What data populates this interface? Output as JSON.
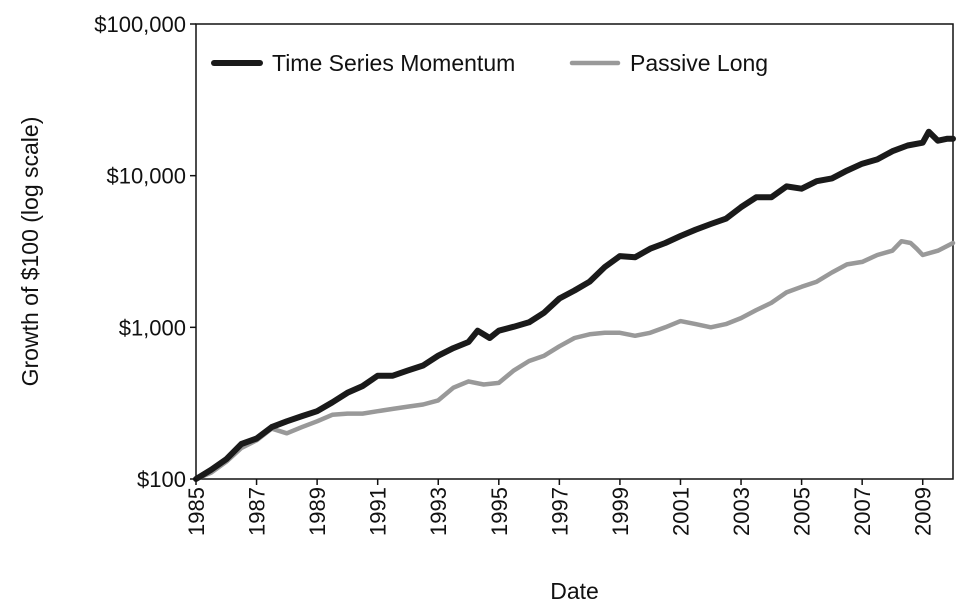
{
  "chart_data": {
    "type": "line",
    "title": "",
    "xlabel": "Date",
    "ylabel": "Growth of $100 (log scale)",
    "y_scale": "log",
    "ylim": [
      100,
      100000
    ],
    "xlim": [
      1985,
      2010
    ],
    "x_ticks": [
      1985,
      1987,
      1989,
      1991,
      1993,
      1995,
      1997,
      1999,
      2001,
      2003,
      2005,
      2007,
      2009
    ],
    "x_tick_labels": [
      "1985",
      "1987",
      "1989",
      "1991",
      "1993",
      "1995",
      "1997",
      "1999",
      "2001",
      "2003",
      "2005",
      "2007",
      "2009"
    ],
    "y_ticks": [
      100,
      1000,
      10000,
      100000
    ],
    "y_tick_labels": [
      "$100",
      "$1,000",
      "$10,000",
      "$100,000"
    ],
    "grid": false,
    "legend": {
      "placement": "top-left",
      "entries": [
        "Time Series Momentum",
        "Passive Long"
      ]
    },
    "series": [
      {
        "name": "Time Series Momentum",
        "color": "#1a1a1a",
        "x": [
          1985.0,
          1985.5,
          1986.0,
          1986.5,
          1987.0,
          1987.5,
          1988.0,
          1988.5,
          1989.0,
          1989.5,
          1990.0,
          1990.5,
          1991.0,
          1991.5,
          1992.0,
          1992.5,
          1993.0,
          1993.5,
          1994.0,
          1994.3,
          1994.7,
          1995.0,
          1995.5,
          1996.0,
          1996.5,
          1997.0,
          1997.5,
          1998.0,
          1998.5,
          1999.0,
          1999.5,
          2000.0,
          2000.5,
          2001.0,
          2001.5,
          2002.0,
          2002.5,
          2003.0,
          2003.5,
          2004.0,
          2004.5,
          2005.0,
          2005.5,
          2006.0,
          2006.5,
          2007.0,
          2007.5,
          2008.0,
          2008.5,
          2009.0,
          2009.2,
          2009.5,
          2009.8,
          2010.0
        ],
        "y": [
          100,
          115,
          135,
          170,
          185,
          220,
          240,
          260,
          280,
          320,
          370,
          410,
          480,
          480,
          520,
          560,
          650,
          730,
          800,
          950,
          850,
          950,
          1010,
          1080,
          1250,
          1550,
          1750,
          2000,
          2500,
          2950,
          2900,
          3300,
          3600,
          4000,
          4400,
          4800,
          5200,
          6200,
          7200,
          7200,
          8500,
          8200,
          9200,
          9600,
          10800,
          12000,
          12800,
          14500,
          15800,
          16500,
          19500,
          17000,
          17500,
          17500
        ]
      },
      {
        "name": "Passive Long",
        "color": "#999999",
        "x": [
          1985.0,
          1985.5,
          1986.0,
          1986.5,
          1987.0,
          1987.5,
          1988.0,
          1988.5,
          1989.0,
          1989.5,
          1990.0,
          1990.5,
          1991.0,
          1991.5,
          1992.0,
          1992.5,
          1993.0,
          1993.5,
          1994.0,
          1994.5,
          1995.0,
          1995.5,
          1996.0,
          1996.5,
          1997.0,
          1997.5,
          1998.0,
          1998.5,
          1999.0,
          1999.5,
          2000.0,
          2000.5,
          2001.0,
          2001.5,
          2002.0,
          2002.5,
          2003.0,
          2003.5,
          2004.0,
          2004.5,
          2005.0,
          2005.5,
          2006.0,
          2006.5,
          2007.0,
          2007.5,
          2008.0,
          2008.3,
          2008.6,
          2008.8,
          2009.0,
          2009.5,
          2010.0
        ],
        "y": [
          100,
          110,
          130,
          160,
          180,
          215,
          200,
          220,
          240,
          265,
          270,
          270,
          280,
          290,
          300,
          310,
          330,
          400,
          440,
          420,
          430,
          520,
          600,
          650,
          750,
          850,
          900,
          920,
          920,
          880,
          920,
          1000,
          1100,
          1050,
          1000,
          1050,
          1150,
          1300,
          1450,
          1700,
          1850,
          2000,
          2300,
          2600,
          2700,
          3000,
          3200,
          3700,
          3600,
          3300,
          3000,
          3200,
          3600
        ]
      }
    ]
  }
}
